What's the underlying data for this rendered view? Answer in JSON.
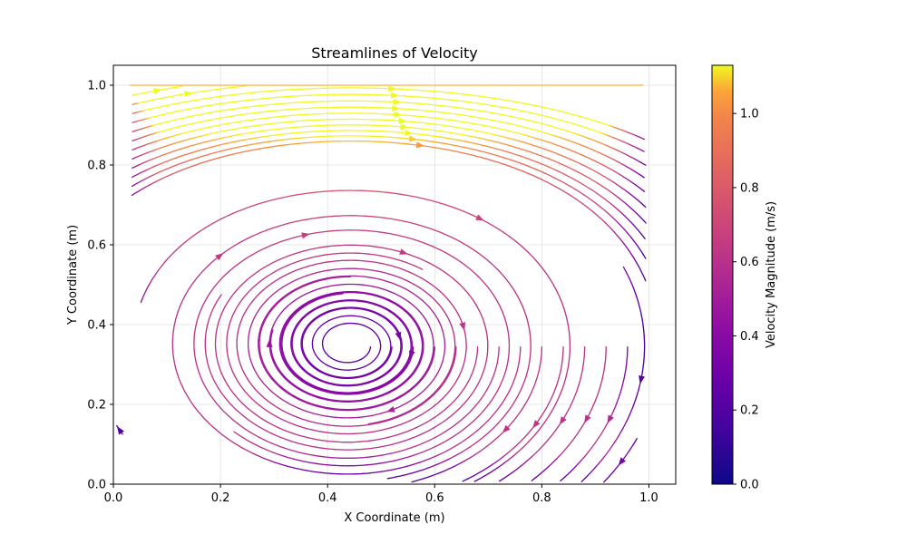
{
  "chart_data": {
    "type": "streamplot",
    "title": "Streamlines of Velocity",
    "xlabel": "X Coordinate (m)",
    "ylabel": "Y Coordinate (m)",
    "xlim": [
      0.0,
      1.05
    ],
    "ylim": [
      0.0,
      1.05
    ],
    "x_ticks": [
      "0.0",
      "0.2",
      "0.4",
      "0.6",
      "0.8",
      "1.0"
    ],
    "y_ticks": [
      "0.0",
      "0.2",
      "0.4",
      "0.6",
      "0.8",
      "1.0"
    ],
    "grid": true,
    "colormap": "plasma",
    "colorbar": {
      "label": "Velocity Magnitude (m/s)",
      "range": [
        0.0,
        1.13
      ],
      "ticks": [
        "0.0",
        "0.2",
        "0.4",
        "0.6",
        "0.8",
        "1.0"
      ],
      "tick_values": [
        0.0,
        0.2,
        0.4,
        0.6,
        0.8,
        1.0
      ]
    },
    "vortex_center": [
      0.44,
      0.35
    ],
    "lid_velocity": 1.0,
    "flow_direction": "clockwise",
    "lid_velocity_range_at_top": [
      0.8,
      1.0
    ]
  }
}
